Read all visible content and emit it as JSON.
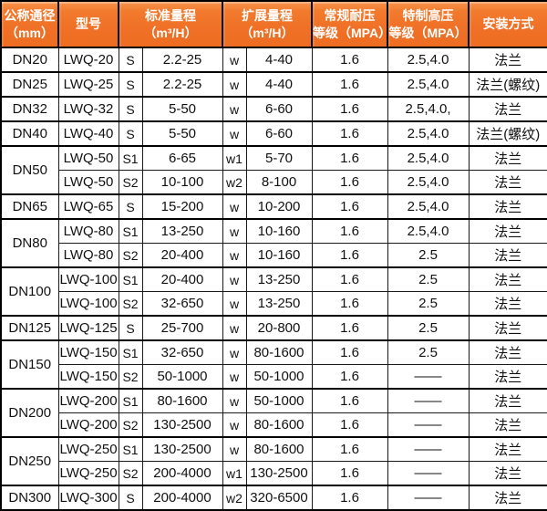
{
  "colors": {
    "header_bg": "#ef7026",
    "header_text": "#ffffff",
    "border": "#000000",
    "body_text": "#111111"
  },
  "header": {
    "diameter_line1": "公称通径",
    "diameter_line2": "（mm）",
    "model": "型号",
    "standard_range_line1": "标准量程",
    "standard_range_line2": "（m³/H）",
    "extended_range_line1": "扩展量程",
    "extended_range_line2": "（m³/H）",
    "normal_pressure_line1": "常规耐压",
    "normal_pressure_line2": "等级（MPA）",
    "special_pressure_line1": "特制高压",
    "special_pressure_line2": "等级（MPA）",
    "installation": "安装方式"
  },
  "rows": [
    {
      "dn": "DN20",
      "dn_rowspan": 1,
      "model": "LWQ-20",
      "std_code": "S",
      "std_range": "2.2-25",
      "ext_code": "w",
      "ext_range": "4-40",
      "normal_mpa": "1.6",
      "special_mpa": "2.5,4.0",
      "install": "法兰"
    },
    {
      "dn": "DN25",
      "dn_rowspan": 1,
      "model": "LWQ-25",
      "std_code": "S",
      "std_range": "2.2-25",
      "ext_code": "w",
      "ext_range": "4-40",
      "normal_mpa": "1.6",
      "special_mpa": "2.5,4.0",
      "install": "法兰(螺纹)"
    },
    {
      "dn": "DN32",
      "dn_rowspan": 1,
      "model": "LWQ-32",
      "std_code": "S",
      "std_range": "5-50",
      "ext_code": "w",
      "ext_range": "6-60",
      "normal_mpa": "1.6",
      "special_mpa": "2.5,4.0,",
      "install": "法兰"
    },
    {
      "dn": "DN40",
      "dn_rowspan": 1,
      "model": "LWQ-40",
      "std_code": "S",
      "std_range": "5-50",
      "ext_code": "w",
      "ext_range": "6-60",
      "normal_mpa": "1.6",
      "special_mpa": "2.5,4.0",
      "install": "法兰(螺纹)"
    },
    {
      "dn": "DN50",
      "dn_rowspan": 2,
      "model": "LWQ-50",
      "std_code": "S1",
      "std_range": "6-65",
      "ext_code": "w1",
      "ext_range": "5-70",
      "normal_mpa": "1.6",
      "special_mpa": "2.5,4.0",
      "install": "法兰"
    },
    {
      "dn": null,
      "dn_rowspan": 0,
      "model": "LWQ-50",
      "std_code": "S2",
      "std_range": "10-100",
      "ext_code": "w2",
      "ext_range": "8-100",
      "normal_mpa": "1.6",
      "special_mpa": "2.5,4.0",
      "install": "法兰"
    },
    {
      "dn": "DN65",
      "dn_rowspan": 1,
      "model": "LWQ-65",
      "std_code": "S",
      "std_range": "15-200",
      "ext_code": "w",
      "ext_range": "10-200",
      "normal_mpa": "1.6",
      "special_mpa": "2.5,4.0",
      "install": "法兰"
    },
    {
      "dn": "DN80",
      "dn_rowspan": 2,
      "model": "LWQ-80",
      "std_code": "S1",
      "std_range": "13-250",
      "ext_code": "w",
      "ext_range": "10-160",
      "normal_mpa": "1.6",
      "special_mpa": "2.5,4.0",
      "install": "法兰"
    },
    {
      "dn": null,
      "dn_rowspan": 0,
      "model": "LWQ-80",
      "std_code": "S2",
      "std_range": "20-400",
      "ext_code": "w",
      "ext_range": "10-160",
      "normal_mpa": "1.6",
      "special_mpa": "2.5",
      "install": "法兰"
    },
    {
      "dn": "DN100",
      "dn_rowspan": 2,
      "model": "LWQ-100",
      "std_code": "S1",
      "std_range": "20-400",
      "ext_code": "w",
      "ext_range": "13-250",
      "normal_mpa": "1.6",
      "special_mpa": "2.5",
      "install": "法兰"
    },
    {
      "dn": null,
      "dn_rowspan": 0,
      "model": "LWQ-100",
      "std_code": "S2",
      "std_range": "32-650",
      "ext_code": "w",
      "ext_range": "13-250",
      "normal_mpa": "1.6",
      "special_mpa": "2.5",
      "install": "法兰"
    },
    {
      "dn": "DN125",
      "dn_rowspan": 1,
      "model": "LWQ-125",
      "std_code": "S",
      "std_range": "25-700",
      "ext_code": "w",
      "ext_range": "20-800",
      "normal_mpa": "1.6",
      "special_mpa": "2.5",
      "install": "法兰"
    },
    {
      "dn": "DN150",
      "dn_rowspan": 2,
      "model": "LWQ-150",
      "std_code": "S1",
      "std_range": "32-650",
      "ext_code": "w",
      "ext_range": "80-1600",
      "normal_mpa": "1.6",
      "special_mpa": "2.5",
      "install": "法兰"
    },
    {
      "dn": null,
      "dn_rowspan": 0,
      "model": "LWQ-150",
      "std_code": "S2",
      "std_range": "50-1000",
      "ext_code": "w",
      "ext_range": "50-1000",
      "normal_mpa": "1.6",
      "special_mpa": "——",
      "install": "法兰"
    },
    {
      "dn": "DN200",
      "dn_rowspan": 2,
      "model": "LWQ-200",
      "std_code": "S1",
      "std_range": "80-1600",
      "ext_code": "w",
      "ext_range": "50-1000",
      "normal_mpa": "1.6",
      "special_mpa": "——",
      "install": "法兰"
    },
    {
      "dn": null,
      "dn_rowspan": 0,
      "model": "LWQ-200",
      "std_code": "S2",
      "std_range": "130-2500",
      "ext_code": "w",
      "ext_range": "80-1600",
      "normal_mpa": "1.6",
      "special_mpa": "——",
      "install": "法兰"
    },
    {
      "dn": "DN250",
      "dn_rowspan": 2,
      "model": "LWQ-250",
      "std_code": "S1",
      "std_range": "130-2500",
      "ext_code": "w",
      "ext_range": "80-1600",
      "normal_mpa": "1.6",
      "special_mpa": "——",
      "install": "法兰"
    },
    {
      "dn": null,
      "dn_rowspan": 0,
      "model": "LWQ-250",
      "std_code": "S2",
      "std_range": "200-4000",
      "ext_code": "w1",
      "ext_range": "130-2500",
      "normal_mpa": "1.6",
      "special_mpa": "——",
      "install": "法兰"
    },
    {
      "dn": "DN300",
      "dn_rowspan": 1,
      "model": "LWQ-300",
      "std_code": "S",
      "std_range": "200-4000",
      "ext_code": "w2",
      "ext_range": "320-6500",
      "normal_mpa": "1.6",
      "special_mpa": "——",
      "install": "法兰"
    }
  ]
}
